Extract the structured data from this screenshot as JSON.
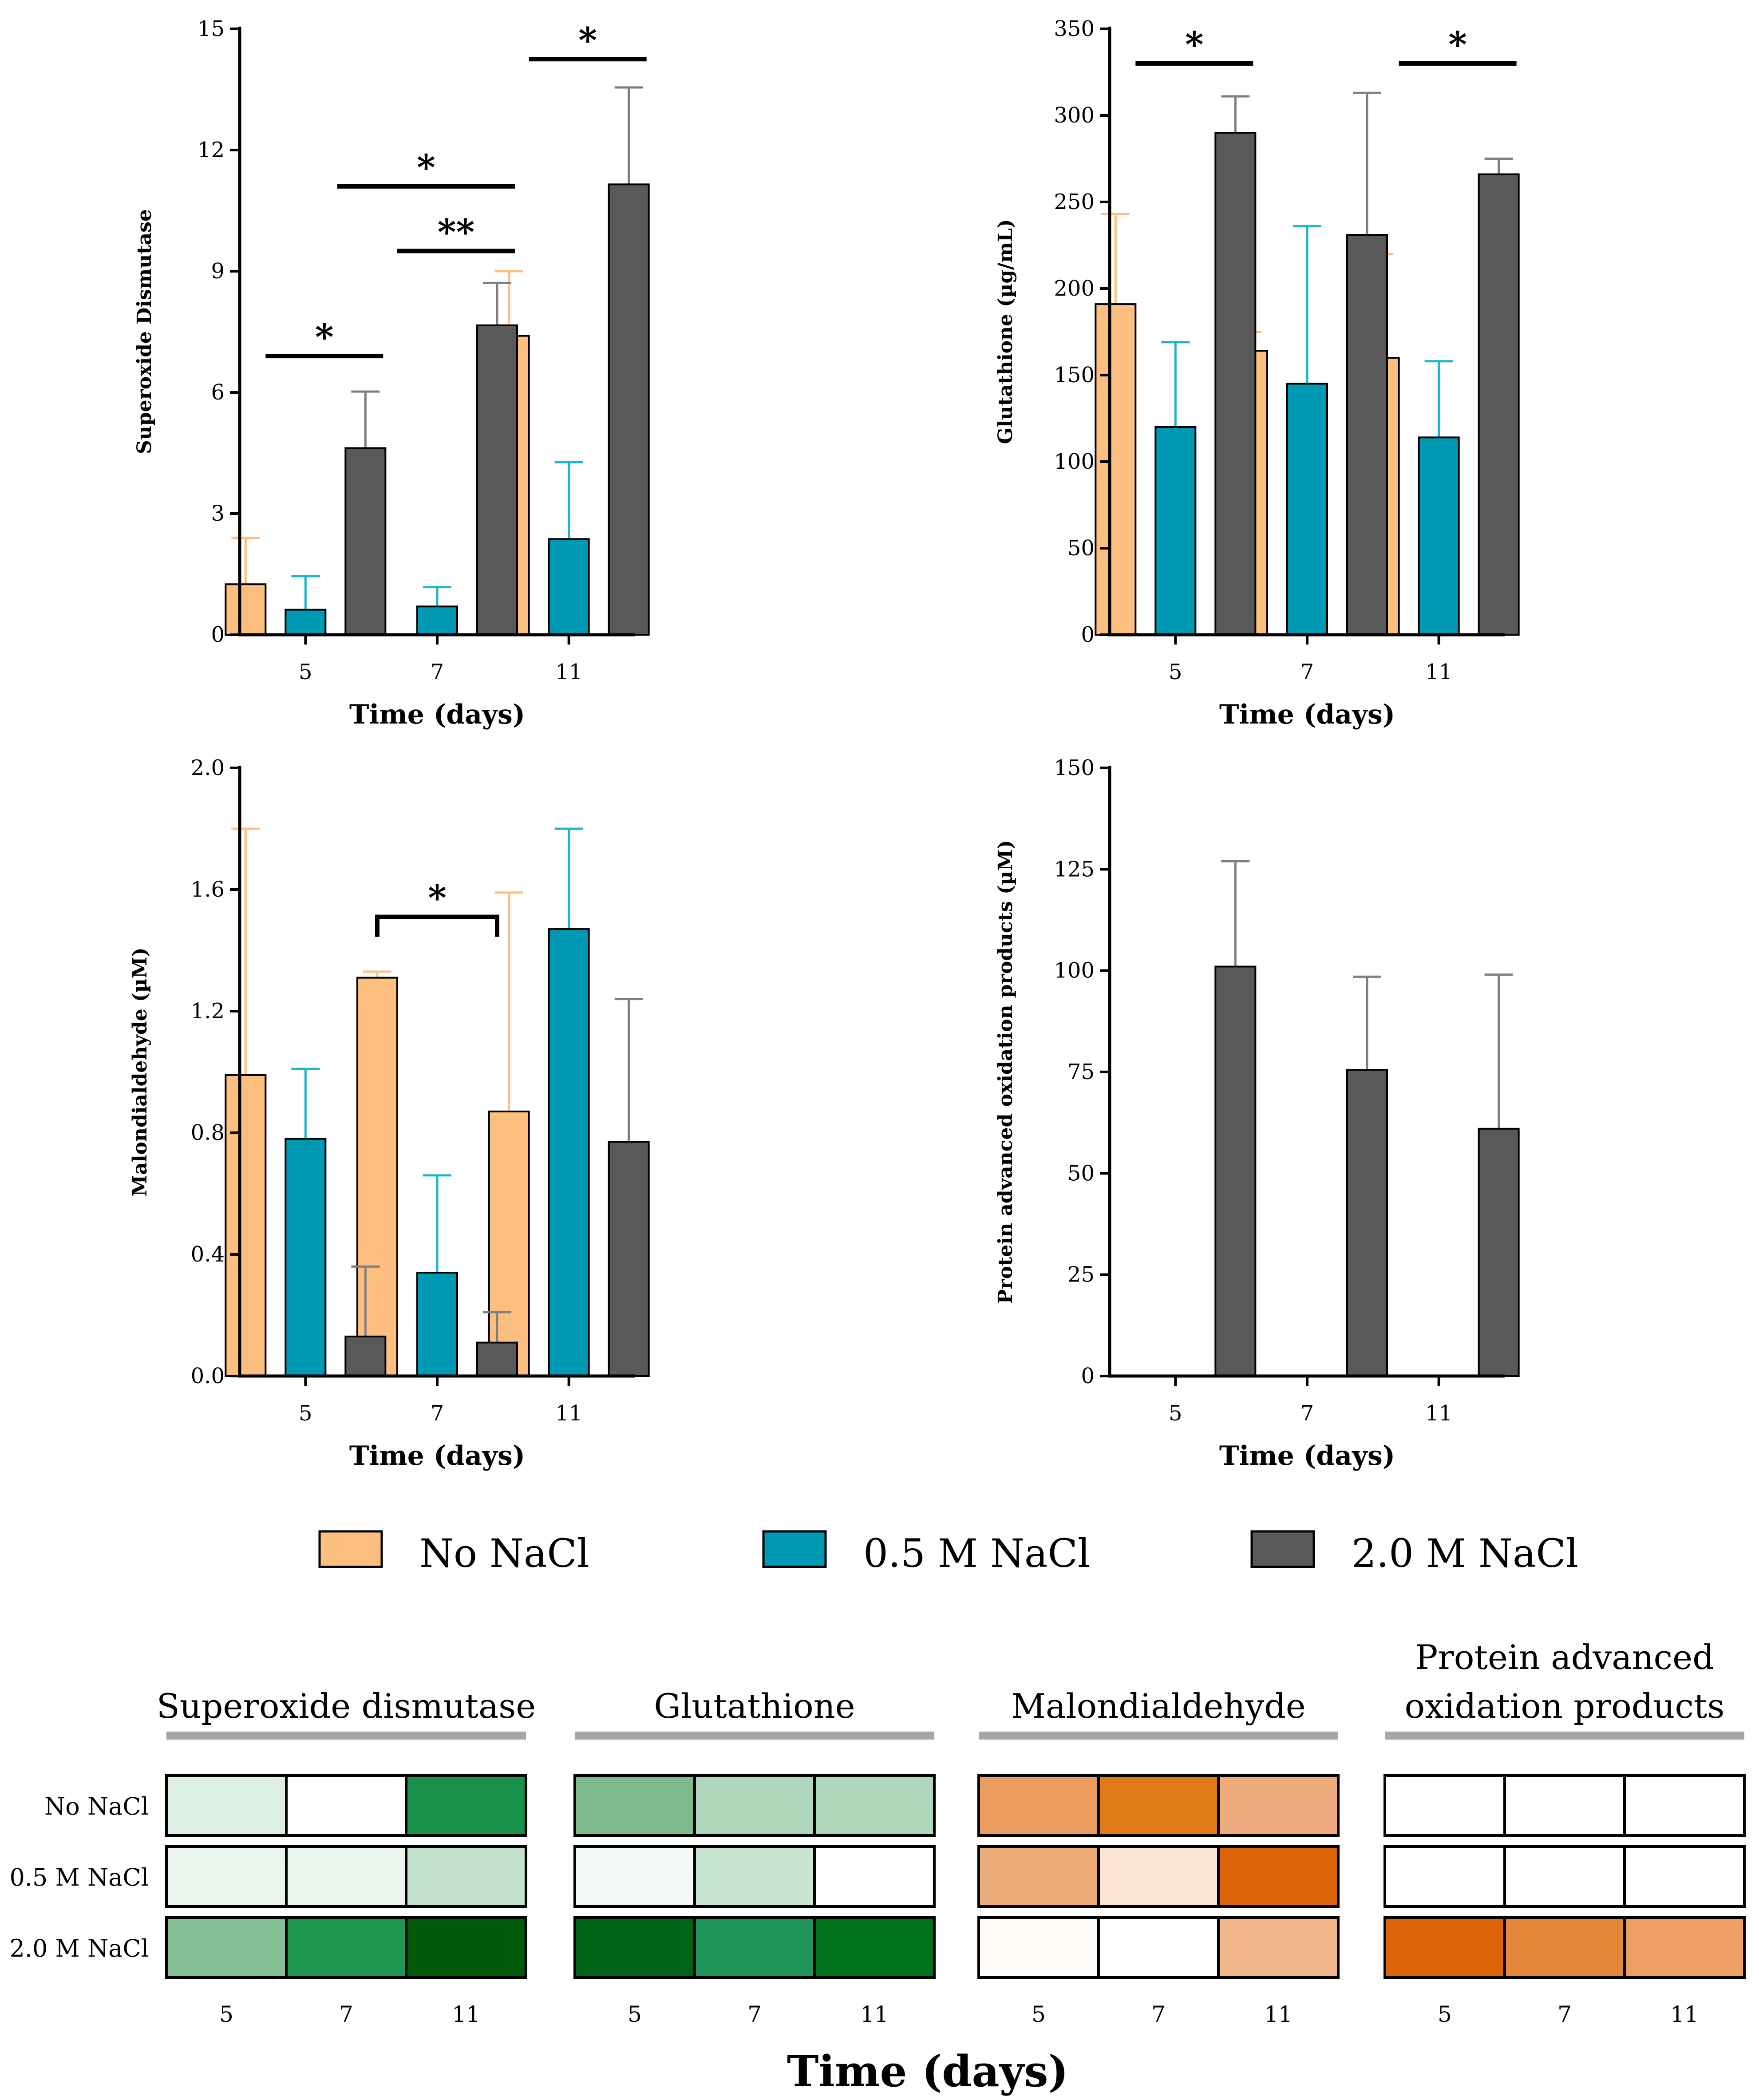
{
  "legend": [
    {
      "label": "No NaCl",
      "color": "#FDBF7F"
    },
    {
      "label": "0.5 M NaCl",
      "color": "#0099B3"
    },
    {
      "label": "2.0 M NaCl",
      "color": "#595959"
    }
  ],
  "colors": {
    "error_no_nacl": "#FDBF7F",
    "error_05": "#1CB5CC",
    "error_20": "#7F7F7F",
    "axis": "#000000",
    "heatmap_underline": "#A6A6A6"
  },
  "chart_data": [
    {
      "type": "bar",
      "title": "",
      "xlabel": "Time (days)",
      "ylabel": "Superoxide Dismutase",
      "categories": [
        "5",
        "7",
        "11"
      ],
      "ylim": [
        0,
        15
      ],
      "yticks": [
        "0",
        "3",
        "6",
        "9",
        "12",
        "15"
      ],
      "series": [
        {
          "name": "No NaCl",
          "values": [
            1.25,
            0,
            7.4
          ],
          "errors": [
            1.15,
            0,
            1.6
          ]
        },
        {
          "name": "0.5 M NaCl",
          "values": [
            0.62,
            0.7,
            2.37
          ],
          "errors": [
            0.83,
            0.48,
            1.9
          ]
        },
        {
          "name": "2.0 M NaCl",
          "values": [
            4.62,
            7.66,
            11.15
          ],
          "errors": [
            1.4,
            1.05,
            2.4
          ]
        }
      ],
      "annotations": [
        {
          "label": "*",
          "from": {
            "cat": 0,
            "series": 1
          },
          "to": {
            "cat": 0,
            "series": 2
          },
          "y": 6.9,
          "style": "line"
        },
        {
          "label": "*",
          "from": {
            "cat": 1,
            "series": 0
          },
          "to": {
            "cat": 1,
            "series": 2
          },
          "y": 11.1,
          "style": "line"
        },
        {
          "label": "**",
          "from": {
            "cat": 1,
            "series": 1
          },
          "to": {
            "cat": 1,
            "series": 2
          },
          "y": 9.5,
          "style": "line"
        },
        {
          "label": "*",
          "from": {
            "cat": 2,
            "series": 1
          },
          "to": {
            "cat": 2,
            "series": 2
          },
          "y": 14.25,
          "style": "line"
        }
      ]
    },
    {
      "type": "bar",
      "title": "",
      "xlabel": "Time (days)",
      "ylabel": "Glutathione (µg/mL)",
      "categories": [
        "5",
        "7",
        "11"
      ],
      "ylim": [
        0,
        350
      ],
      "yticks": [
        "0",
        "50",
        "100",
        "150",
        "200",
        "250",
        "300",
        "350"
      ],
      "series": [
        {
          "name": "No NaCl",
          "values": [
            191,
            164,
            160
          ],
          "errors": [
            52,
            11,
            60
          ]
        },
        {
          "name": "0.5 M NaCl",
          "values": [
            120,
            145,
            114
          ],
          "errors": [
            49,
            91,
            44
          ]
        },
        {
          "name": "2.0 M NaCl",
          "values": [
            290,
            231,
            266
          ],
          "errors": [
            21,
            82,
            9
          ]
        }
      ],
      "annotations": [
        {
          "label": "*",
          "from": {
            "cat": 0,
            "series": 1
          },
          "to": {
            "cat": 0,
            "series": 2
          },
          "y": 330,
          "style": "line"
        },
        {
          "label": "*",
          "from": {
            "cat": 2,
            "series": 1
          },
          "to": {
            "cat": 2,
            "series": 2
          },
          "y": 330,
          "style": "line"
        }
      ]
    },
    {
      "type": "bar",
      "title": "",
      "xlabel": "Time (days)",
      "ylabel": "Malondialdehyde (µM)",
      "categories": [
        "5",
        "7",
        "11"
      ],
      "ylim": [
        0,
        2.0
      ],
      "yticks": [
        "0.0",
        "0.4",
        "0.8",
        "1.2",
        "1.6",
        "2.0"
      ],
      "series": [
        {
          "name": "No NaCl",
          "values": [
            0.99,
            1.31,
            0.87
          ],
          "errors": [
            0.81,
            0.02,
            0.72
          ]
        },
        {
          "name": "0.5 M NaCl",
          "values": [
            0.78,
            0.34,
            1.47
          ],
          "errors": [
            0.23,
            0.32,
            0.33
          ]
        },
        {
          "name": "2.0 M NaCl",
          "values": [
            0.13,
            0.11,
            0.77
          ],
          "errors": [
            0.23,
            0.1,
            0.47
          ]
        }
      ],
      "annotations": [
        {
          "label": "*",
          "from": {
            "cat": 1,
            "series": 0
          },
          "to": {
            "cat": 1,
            "series": 2
          },
          "y": 1.51,
          "style": "bracket"
        }
      ]
    },
    {
      "type": "bar",
      "title": "",
      "xlabel": "Time (days)",
      "ylabel": "Protein advanced oxidation products (µM)",
      "categories": [
        "5",
        "7",
        "11"
      ],
      "ylim": [
        0,
        150
      ],
      "yticks": [
        "0",
        "25",
        "50",
        "75",
        "100",
        "125",
        "150"
      ],
      "series": [
        {
          "name": "No NaCl",
          "values": [
            0,
            0,
            0
          ],
          "errors": [
            0,
            0,
            0
          ]
        },
        {
          "name": "0.5 M NaCl",
          "values": [
            0,
            0,
            0
          ],
          "errors": [
            0,
            0,
            0
          ]
        },
        {
          "name": "2.0 M NaCl",
          "values": [
            101,
            75.5,
            61
          ],
          "errors": [
            26,
            23,
            38
          ]
        }
      ],
      "annotations": []
    },
    {
      "type": "heatmap",
      "xlabel": "Time (days)",
      "rows": [
        "No NaCl",
        "0.5 M NaCl",
        "2.0 M NaCl"
      ],
      "columns": [
        "5",
        "7",
        "11"
      ],
      "panels": [
        {
          "title": "Superoxide dismutase",
          "cells": [
            [
              "#DCEFE2",
              "#FFFFFF",
              "#18914B"
            ],
            [
              "#EAF5EE",
              "#EAF5EE",
              "#C3E2CE"
            ],
            [
              "#84BE95",
              "#1E9650",
              "#005A0C"
            ]
          ]
        },
        {
          "title": "Glutathione",
          "cells": [
            [
              "#7DBB8D",
              "#AFD7BB",
              "#AFD7BB"
            ],
            [
              "#F3F9F5",
              "#CBE5D3",
              "#FFFFFF"
            ],
            [
              "#006418",
              "#20955A",
              "#00711C"
            ]
          ]
        },
        {
          "title": "Malondialdehyde",
          "cells": [
            [
              "#EB9D5F",
              "#E07B18",
              "#EEAC7D"
            ],
            [
              "#EDAD7B",
              "#FCE4D3",
              "#DC6509"
            ],
            [
              "#FEFBF9",
              "#FFFFFF",
              "#F0B68A"
            ]
          ]
        },
        {
          "title": "Protein advanced oxidation products",
          "cells": [
            [
              "#FFFFFF",
              "#FFFFFF",
              "#FFFFFF"
            ],
            [
              "#FFFFFF",
              "#FFFFFF",
              "#FFFFFF"
            ],
            [
              "#DD6509",
              "#E48739",
              "#EC9E63"
            ]
          ]
        }
      ]
    }
  ]
}
